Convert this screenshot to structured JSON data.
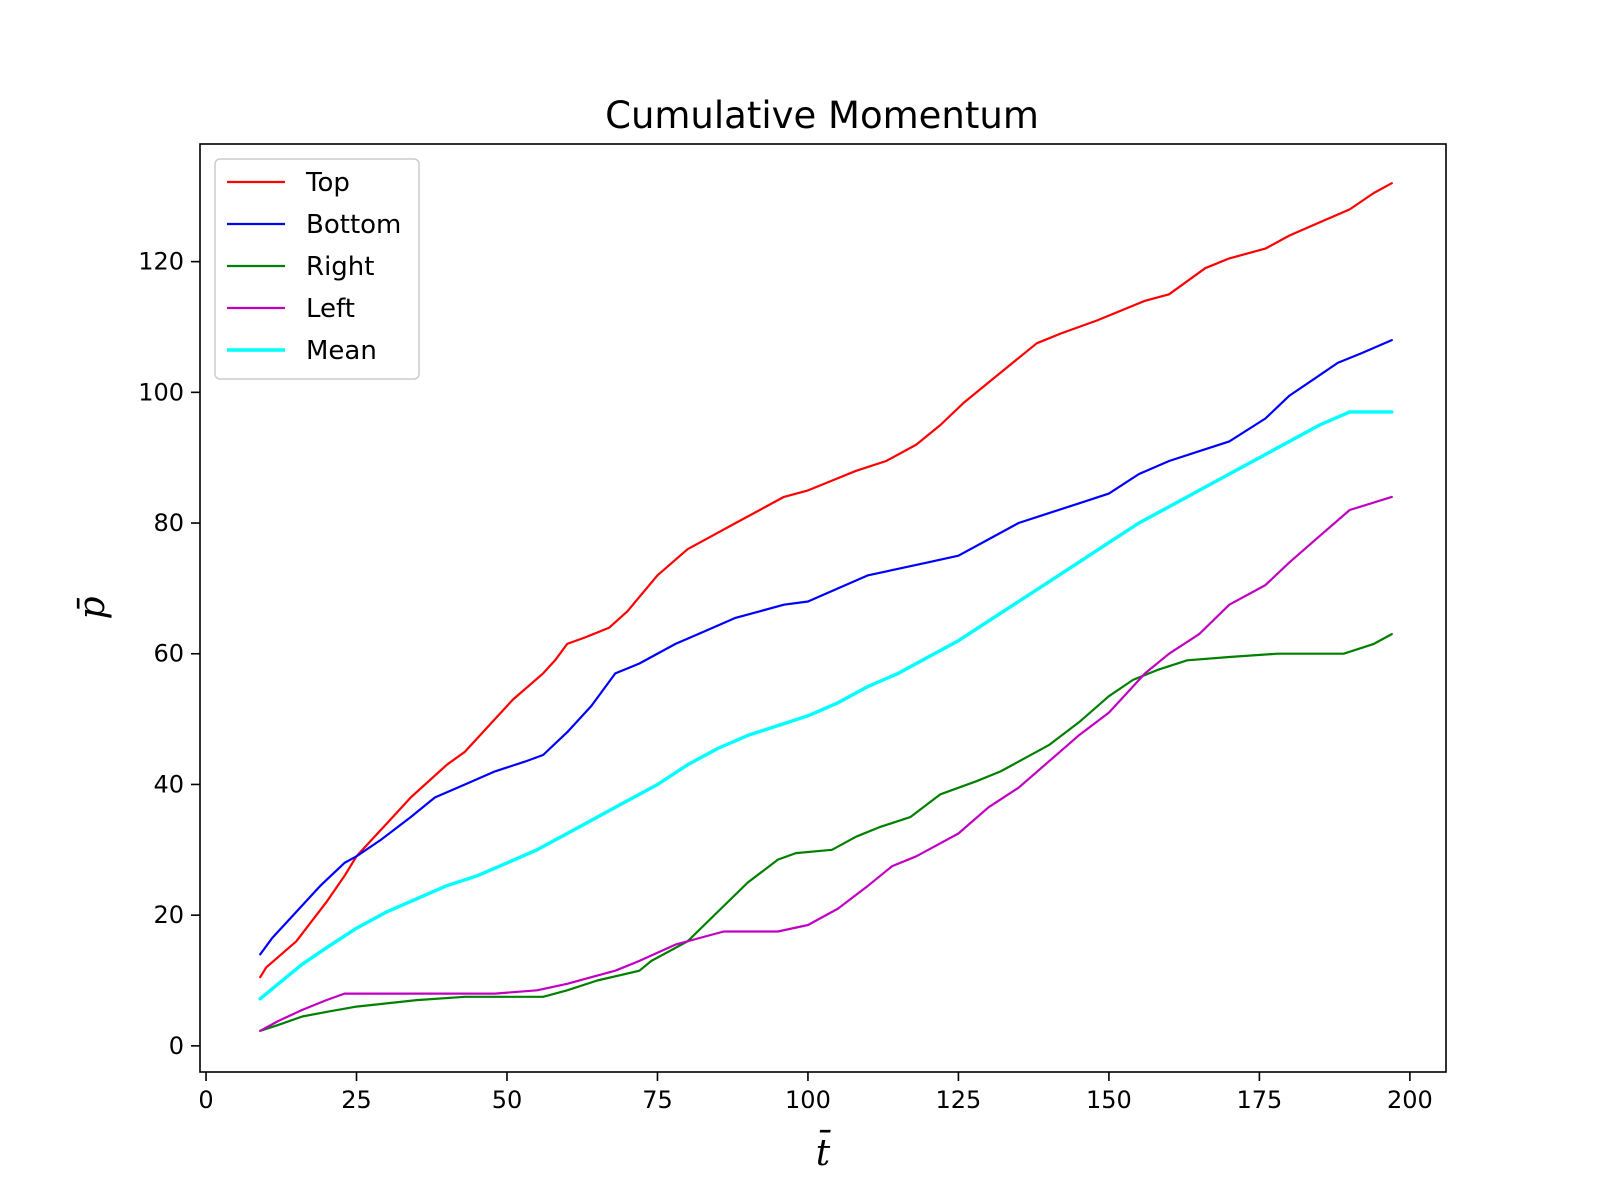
{
  "chart_data": {
    "type": "line",
    "title": "Cumulative Momentum",
    "xlabel": "t̄",
    "ylabel": "p̄",
    "xlim": [
      -1,
      206
    ],
    "ylim": [
      -4,
      138
    ],
    "xticks": [
      0,
      25,
      50,
      75,
      100,
      125,
      150,
      175,
      200
    ],
    "yticks": [
      0,
      20,
      40,
      60,
      80,
      100,
      120
    ],
    "grid": false,
    "legend_position": "top-left",
    "series": [
      {
        "name": "Top",
        "color": "#ff0000",
        "x": [
          9,
          10,
          15,
          20,
          23,
          25,
          30,
          34,
          40,
          43,
          48,
          51,
          56,
          58,
          60,
          63,
          67,
          70,
          75,
          80,
          85,
          88,
          92,
          96,
          100,
          104,
          108,
          113,
          118,
          122,
          126,
          130,
          134,
          138,
          142,
          148,
          152,
          156,
          160,
          166,
          170,
          176,
          180,
          185,
          190,
          194,
          197
        ],
        "y": [
          10.5,
          12,
          16,
          22,
          26,
          29,
          34,
          38,
          43,
          45,
          50,
          53,
          57,
          59,
          61.5,
          62.5,
          64,
          66.5,
          72,
          76,
          78.5,
          80,
          82,
          84,
          85,
          86.5,
          88,
          89.5,
          92,
          95,
          98.5,
          101.5,
          104.5,
          107.5,
          109,
          111,
          112.5,
          114,
          115,
          119,
          120.5,
          122,
          124,
          126,
          128,
          130.5,
          132
        ]
      },
      {
        "name": "Bottom",
        "color": "#0000ff",
        "x": [
          9,
          11,
          15,
          19,
          23,
          25,
          29,
          34,
          38,
          43,
          48,
          53,
          56,
          60,
          64,
          68,
          72,
          78,
          83,
          88,
          92,
          96,
          100,
          105,
          110,
          115,
          120,
          125,
          130,
          135,
          140,
          145,
          150,
          155,
          160,
          165,
          170,
          176,
          180,
          184,
          188,
          192,
          197
        ],
        "y": [
          14,
          16.5,
          20.5,
          24.5,
          28,
          29,
          31.5,
          35,
          38,
          40,
          42,
          43.5,
          44.5,
          48,
          52,
          57,
          58.5,
          61.5,
          63.5,
          65.5,
          66.5,
          67.5,
          68,
          70,
          72,
          73,
          74,
          75,
          77.5,
          80,
          81.5,
          83,
          84.5,
          87.5,
          89.5,
          91,
          92.5,
          96,
          99.5,
          102,
          104.5,
          106,
          108
        ]
      },
      {
        "name": "Right",
        "color": "#008000",
        "x": [
          9,
          12,
          16,
          20,
          25,
          30,
          35,
          43,
          48,
          56,
          60,
          65,
          72,
          74,
          80,
          85,
          90,
          95,
          98,
          104,
          108,
          112,
          117,
          122,
          128,
          132,
          136,
          140,
          145,
          150,
          154,
          158,
          163,
          170,
          178,
          185,
          189,
          194,
          197
        ],
        "y": [
          2.3,
          3.2,
          4.5,
          5.2,
          6,
          6.5,
          7,
          7.5,
          7.5,
          7.5,
          8.5,
          10,
          11.5,
          13,
          16,
          20.5,
          25,
          28.5,
          29.5,
          30,
          32,
          33.5,
          35,
          38.5,
          40.5,
          42,
          44,
          46,
          49.5,
          53.5,
          56,
          57.5,
          59,
          59.5,
          60,
          60,
          60,
          61.5,
          63
        ]
      },
      {
        "name": "Left",
        "color": "#c000c0",
        "x": [
          9,
          12,
          16,
          20,
          23,
          30,
          35,
          43,
          48,
          55,
          60,
          64,
          68,
          72,
          78,
          82,
          86,
          90,
          95,
          100,
          105,
          110,
          114,
          118,
          120,
          125,
          130,
          135,
          140,
          145,
          150,
          153,
          156,
          160,
          165,
          170,
          176,
          180,
          185,
          190,
          197
        ],
        "y": [
          2.3,
          3.8,
          5.5,
          7,
          8,
          8,
          8,
          8,
          8,
          8.5,
          9.5,
          10.5,
          11.5,
          13,
          15.5,
          16.5,
          17.5,
          17.5,
          17.5,
          18.5,
          21,
          24.5,
          27.5,
          29,
          30,
          32.5,
          36.5,
          39.5,
          43.5,
          47.5,
          51,
          54,
          57,
          60,
          63,
          67.5,
          70.5,
          74,
          78,
          82,
          84
        ]
      },
      {
        "name": "Mean",
        "color": "#00ffff",
        "x": [
          9,
          12,
          16,
          20,
          25,
          30,
          35,
          40,
          45,
          50,
          55,
          60,
          65,
          70,
          75,
          80,
          85,
          90,
          95,
          100,
          105,
          110,
          115,
          120,
          125,
          130,
          135,
          140,
          145,
          150,
          155,
          160,
          165,
          170,
          175,
          180,
          185,
          190,
          197
        ],
        "y": [
          7.2,
          9.5,
          12.5,
          15,
          18,
          20.5,
          22.5,
          24.5,
          26,
          28,
          30,
          32.5,
          35,
          37.5,
          40,
          43,
          45.5,
          47.5,
          49,
          50.5,
          52.5,
          55,
          57,
          59.5,
          62,
          65,
          68,
          71,
          74,
          77,
          80,
          82.5,
          85,
          87.5,
          90,
          92.5,
          95,
          97,
          97
        ]
      }
    ]
  }
}
